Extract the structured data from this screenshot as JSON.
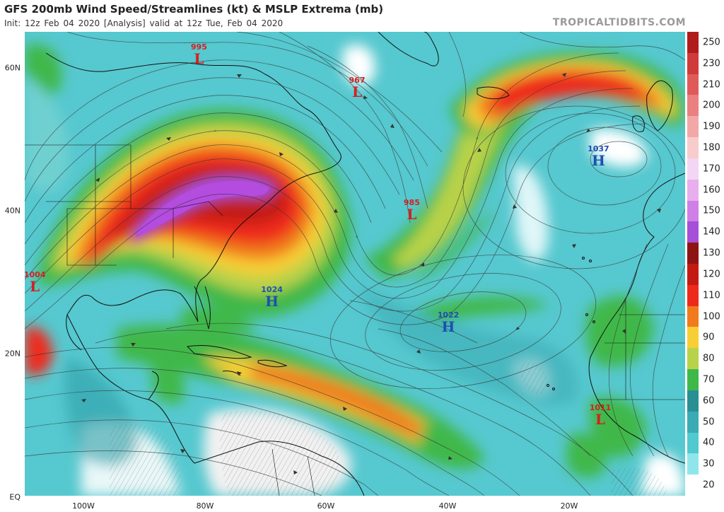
{
  "header": {
    "title": "GFS 200mb Wind Speed/Streamlines (kt) & MSLP Extrema (mb)",
    "subtitle": "Init: 12z Feb 04 2020   [Analysis]   valid at 12z Tue, Feb 04 2020",
    "brand": "TROPICALTIDBITS.COM"
  },
  "axes": {
    "lat_labels": [
      "60N",
      "40N",
      "20N",
      "EQ"
    ],
    "lon_labels": [
      "100W",
      "80W",
      "60W",
      "40W",
      "20W"
    ]
  },
  "colorbar": {
    "levels": [
      "250",
      "230",
      "210",
      "200",
      "190",
      "180",
      "170",
      "160",
      "150",
      "140",
      "130",
      "120",
      "110",
      "100",
      "90",
      "80",
      "70",
      "60",
      "50",
      "40",
      "30",
      "20"
    ],
    "colors": [
      "#b01c1c",
      "#cf3a3a",
      "#e05a5a",
      "#ea8080",
      "#f3a8a8",
      "#f8cccc",
      "#f3d6f3",
      "#e8aeee",
      "#d07fe6",
      "#a64fd8",
      "#8e1414",
      "#c41a14",
      "#ee2a1a",
      "#f07a1c",
      "#f7ce35",
      "#b8d24a",
      "#3fb84a",
      "#2a8f93",
      "#3aabb5",
      "#50c9d0",
      "#8fe6ea",
      "#ffffff"
    ]
  },
  "extrema": [
    {
      "type": "low",
      "symbol": "L",
      "pressure": "995",
      "lon": -81,
      "lat": 62
    },
    {
      "type": "low",
      "symbol": "L",
      "pressure": "967",
      "lon": -55,
      "lat": 57.3
    },
    {
      "type": "low",
      "symbol": "L",
      "pressure": "985",
      "lon": -46,
      "lat": 40.2
    },
    {
      "type": "low",
      "symbol": "L",
      "pressure": "1004",
      "lon": -108,
      "lat": 30.1
    },
    {
      "type": "low",
      "symbol": "L",
      "pressure": "1011",
      "lon": -15,
      "lat": 11.5
    },
    {
      "type": "high",
      "symbol": "H",
      "pressure": "1037",
      "lon": -15.3,
      "lat": 47.7
    },
    {
      "type": "high",
      "symbol": "H",
      "pressure": "1024",
      "lon": -69,
      "lat": 28
    },
    {
      "type": "high",
      "symbol": "H",
      "pressure": "1022",
      "lon": -40,
      "lat": 24.5
    }
  ]
}
